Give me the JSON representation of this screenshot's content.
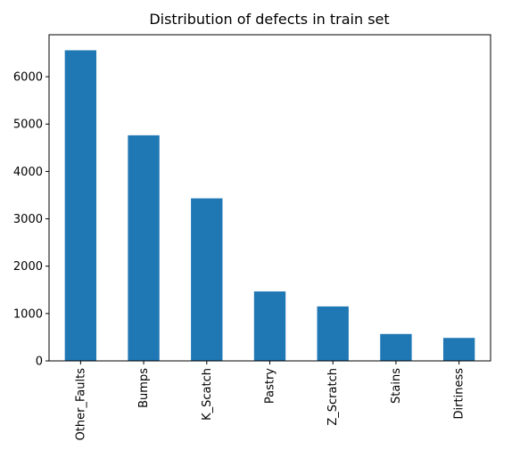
{
  "chart_data": {
    "type": "bar",
    "title": "Distribution of defects in train set",
    "xlabel": "",
    "ylabel": "",
    "categories": [
      "Other_Faults",
      "Bumps",
      "K_Scatch",
      "Pastry",
      "Z_Scratch",
      "Stains",
      "Dirtiness"
    ],
    "values": [
      6558,
      4763,
      3432,
      1466,
      1150,
      568,
      485
    ],
    "ylim": [
      0,
      6886
    ],
    "yticks": [
      0,
      1000,
      2000,
      3000,
      4000,
      5000,
      6000
    ],
    "bar_color": "#1f77b4",
    "grid": false,
    "legend": "none"
  }
}
